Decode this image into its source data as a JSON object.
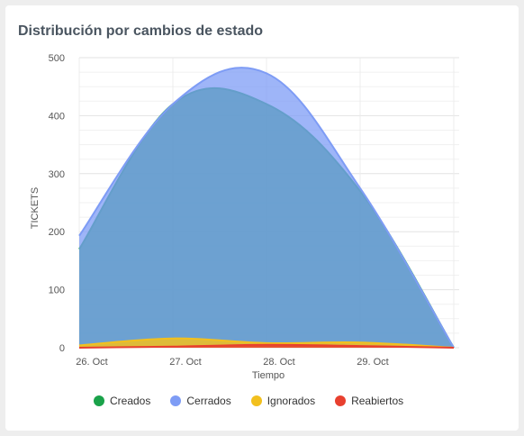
{
  "title": "Distribución por cambios de estado",
  "chart_data": {
    "type": "area",
    "x": [
      "26. Oct",
      "27. Oct",
      "28. Oct",
      "29. Oct",
      ""
    ],
    "xlabel": "Tiempo",
    "ylabel": "TICKETS",
    "ylim": [
      0,
      500
    ],
    "yticks": [
      0,
      100,
      200,
      300,
      400,
      500
    ],
    "grid": true,
    "legend_position": "bottom",
    "series": [
      {
        "name": "Creados",
        "values": [
          170,
          420,
          420,
          270,
          0
        ],
        "color": "#1aa24a"
      },
      {
        "name": "Cerrados",
        "values": [
          193,
          420,
          473,
          275,
          0
        ],
        "color": "#7e9cf5"
      },
      {
        "name": "Ignorados",
        "values": [
          4,
          16,
          8,
          9,
          0
        ],
        "color": "#f2c01e"
      },
      {
        "name": "Reabiertos",
        "values": [
          0,
          2,
          5,
          3,
          0
        ],
        "color": "#e8402f"
      }
    ]
  }
}
